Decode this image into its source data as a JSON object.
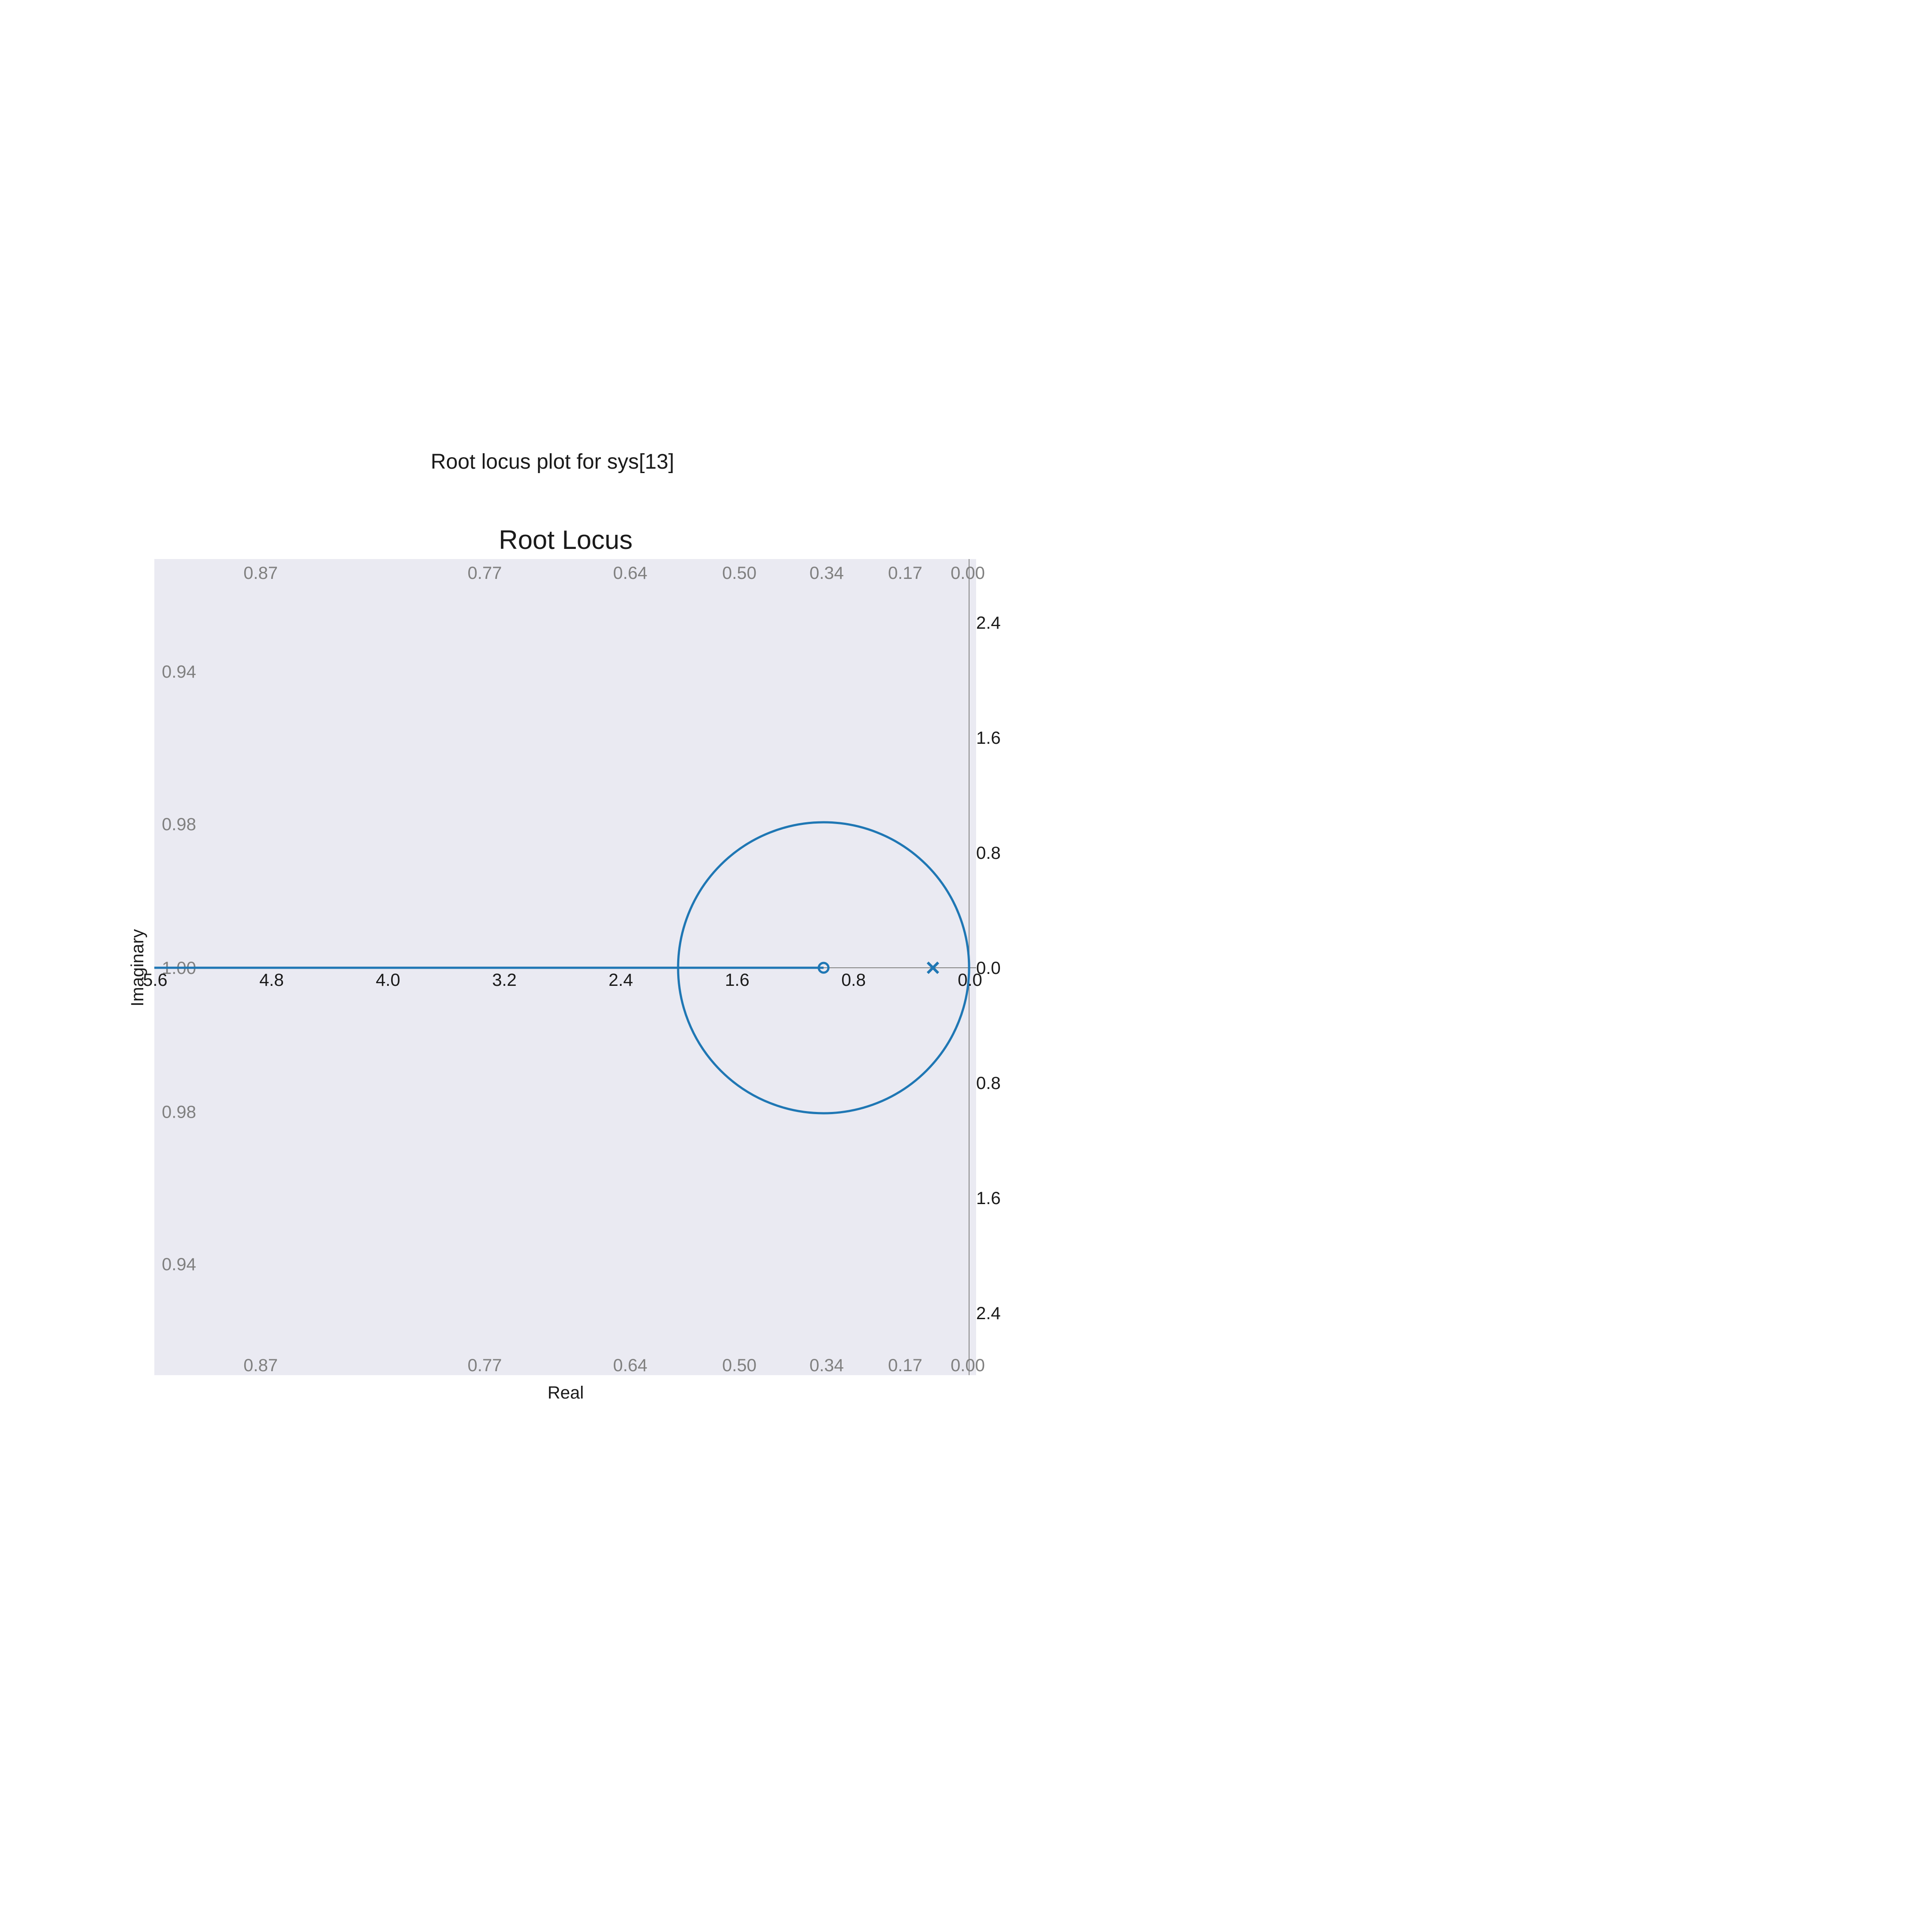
{
  "suptitle": "Root locus plot for sys[13]",
  "chart_data": {
    "type": "line",
    "title": "Root Locus",
    "xlabel": "Real",
    "ylabel": "Imaginary",
    "xlim": [
      -5.6,
      0.0
    ],
    "ylim": [
      -2.8,
      2.8
    ],
    "grid": false,
    "x_tick_labels": [
      "5.6",
      "4.8",
      "4.0",
      "3.2",
      "2.4",
      "1.6",
      "0.8",
      "0.0"
    ],
    "x_tick_values": [
      -5.6,
      -4.8,
      -4.0,
      -3.2,
      -2.4,
      -1.6,
      -0.8,
      0.0
    ],
    "y_tick_labels": [
      "2.4",
      "1.6",
      "0.8",
      "0.0",
      "0.8",
      "1.6",
      "2.4"
    ],
    "y_tick_values": [
      2.4,
      1.6,
      0.8,
      0.0,
      -0.8,
      -1.6,
      -2.4
    ],
    "damping_labels_top": [
      {
        "label": "0.87",
        "x": -4.86
      },
      {
        "label": "0.77",
        "x": -3.32
      },
      {
        "label": "0.64",
        "x": -2.32
      },
      {
        "label": "0.50",
        "x": -1.57
      },
      {
        "label": "0.34",
        "x": -0.97
      },
      {
        "label": "0.17",
        "x": -0.43
      },
      {
        "label": "0.00",
        "x": 0.0
      }
    ],
    "damping_labels_bottom": [
      {
        "label": "0.87",
        "x": -4.86
      },
      {
        "label": "0.77",
        "x": -3.32
      },
      {
        "label": "0.64",
        "x": -2.32
      },
      {
        "label": "0.50",
        "x": -1.57
      },
      {
        "label": "0.34",
        "x": -0.97
      },
      {
        "label": "0.17",
        "x": -0.43
      },
      {
        "label": "0.00",
        "x": 0.0
      }
    ],
    "damping_labels_left": [
      {
        "label": "0.94",
        "y": 2.06
      },
      {
        "label": "0.98",
        "y": 1.0
      },
      {
        "label": "1.00",
        "y": 0.0
      },
      {
        "label": "0.98",
        "y": -1.0
      },
      {
        "label": "0.94",
        "y": -2.06
      }
    ],
    "series": [
      {
        "type": "circle",
        "center": [
          -1.0,
          0.0
        ],
        "radius": 1.0,
        "color": "#1f77b4"
      },
      {
        "type": "segment",
        "x": [
          -5.6,
          -1.0
        ],
        "y": [
          0.0,
          0.0
        ],
        "color": "#1f77b4"
      }
    ],
    "poles": [
      {
        "x": 0.0,
        "y": 0.0
      }
    ],
    "zeros": [
      {
        "x": -1.0,
        "y": 0.0
      }
    ],
    "colors": {
      "locus": "#1f77b4",
      "plot_background": "#eaeaf2",
      "axis_line": "#888888"
    }
  }
}
